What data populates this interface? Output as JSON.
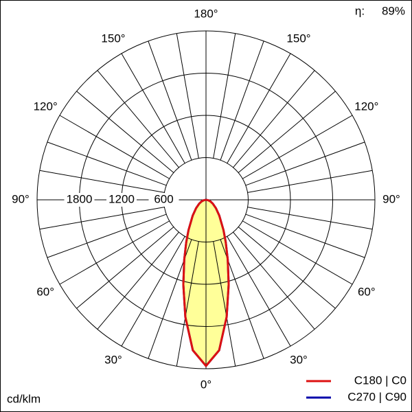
{
  "chart_data": {
    "type": "polar",
    "unit": "cd/klm",
    "efficiency_symbol": "η:",
    "efficiency": "89%",
    "angles": [
      -90,
      -80,
      -70,
      -60,
      -50,
      -40,
      -30,
      -25,
      -20,
      -15,
      -10,
      -5,
      0,
      5,
      10,
      15,
      20,
      25,
      30,
      40,
      50,
      60,
      70,
      80,
      90
    ],
    "series": [
      {
        "name": "C270 | C90",
        "color": "#0000aa",
        "values": [
          0,
          31,
          68,
          114,
          183,
          295,
          497,
          664,
          903,
          1245,
          1690,
          2146,
          2360,
          2146,
          1690,
          1245,
          903,
          664,
          497,
          295,
          183,
          114,
          68,
          31,
          0
        ]
      },
      {
        "name": "C180 | C0",
        "color": "#dd1111",
        "values": [
          0,
          31,
          68,
          114,
          183,
          295,
          497,
          664,
          903,
          1245,
          1690,
          2146,
          2360,
          2146,
          1690,
          1245,
          903,
          664,
          497,
          295,
          183,
          114,
          68,
          31,
          0
        ]
      }
    ],
    "fill_color": "#ffff99",
    "rlim": [
      0,
      2400
    ],
    "rticks": [
      600,
      1200,
      1800
    ],
    "angle_ticks": [
      {
        "value": 0,
        "label": "0°"
      },
      {
        "value": 30,
        "label": "30°"
      },
      {
        "value": 60,
        "label": "60°"
      },
      {
        "value": 90,
        "label": "90°"
      },
      {
        "value": 120,
        "label": "120°"
      },
      {
        "value": 150,
        "label": "150°"
      },
      {
        "value": 180,
        "label": "180°"
      }
    ]
  }
}
